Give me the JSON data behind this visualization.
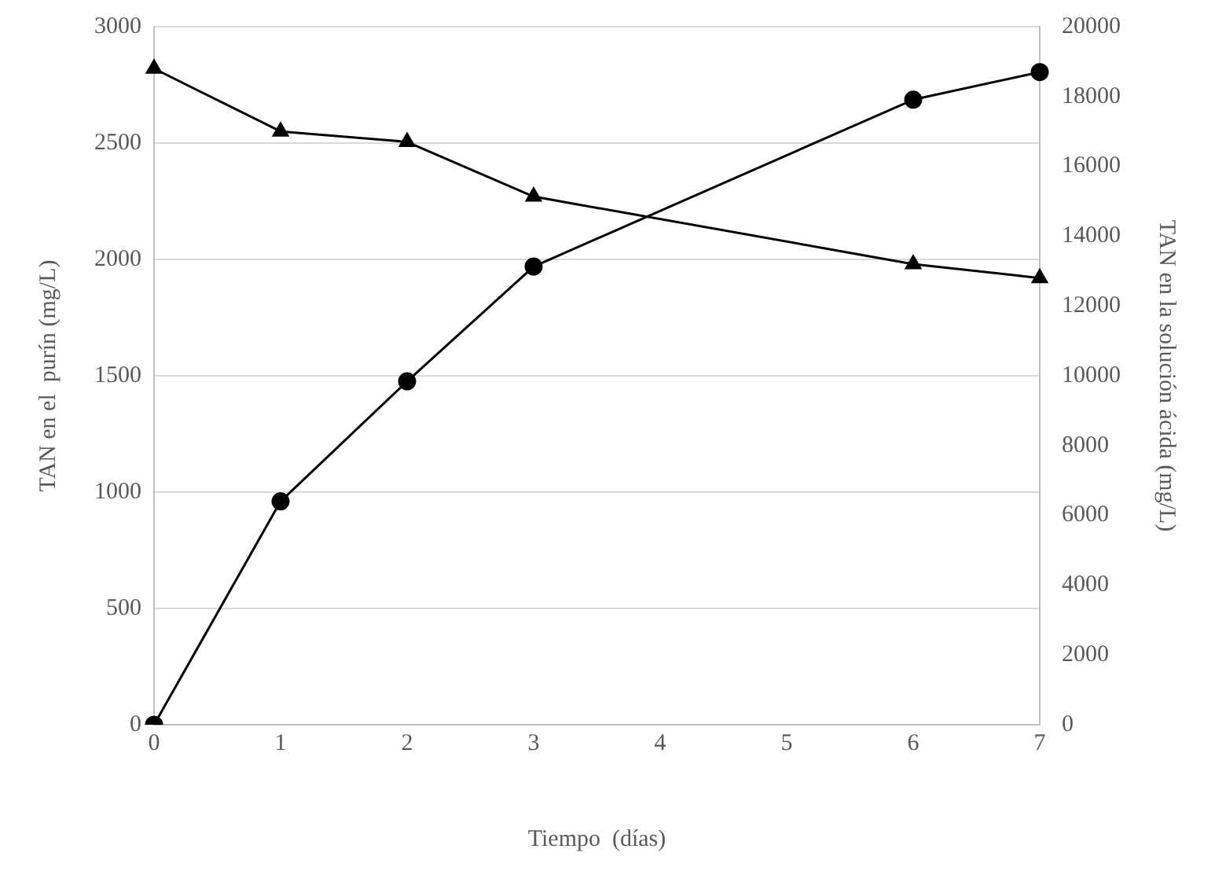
{
  "chart_data": {
    "type": "line",
    "xlabel": "Tiempo  (días)",
    "ylabel": "TAN en el  purín (mg/L)",
    "y2label": "TAN en la solución ácida (mg/L)",
    "categories": [
      "0",
      "1",
      "2",
      "3",
      "4",
      "5",
      "6",
      "7"
    ],
    "series": [
      {
        "color": "#000000",
        "marker": "triangle",
        "values": [
          2820,
          2550,
          2505,
          2270,
          null,
          null,
          1980,
          1920
        ]
      },
      {
        "color": "#000000",
        "marker": "circle",
        "axis": "y2",
        "values": [
          0,
          6400,
          9840,
          13130,
          null,
          null,
          17910,
          18700
        ]
      }
    ],
    "ylim": [
      0,
      3000
    ],
    "yticks": [
      0,
      500,
      1000,
      1500,
      2000,
      2500,
      3000
    ],
    "y2lim": [
      0,
      20000
    ],
    "y2ticks": [
      0,
      2000,
      4000,
      6000,
      8000,
      10000,
      12000,
      14000,
      16000,
      18000,
      20000
    ],
    "grid": "y",
    "legend": false,
    "line_style": "solid"
  }
}
